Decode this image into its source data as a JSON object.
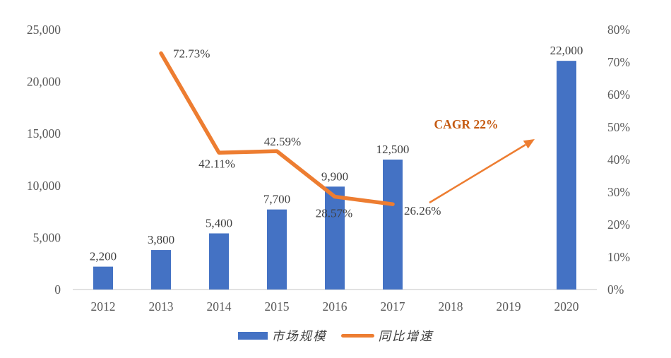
{
  "chart_data": {
    "type": "combo",
    "title": "",
    "categories": [
      "2012",
      "2013",
      "2014",
      "2015",
      "2016",
      "2017",
      "2018",
      "2019",
      "2020"
    ],
    "series": [
      {
        "name": "市场规模",
        "type": "bar",
        "axis": "left",
        "color": "#4472C4",
        "values": [
          2200,
          3800,
          5400,
          7700,
          9900,
          12500,
          null,
          null,
          22000
        ],
        "data_labels": [
          "2,200",
          "3,800",
          "5,400",
          "7,700",
          "9,900",
          "12,500",
          null,
          null,
          "22,000"
        ]
      },
      {
        "name": "同比增速",
        "type": "line",
        "axis": "right",
        "color": "#ED7D31",
        "values": [
          null,
          72.73,
          42.11,
          42.59,
          28.57,
          26.26,
          null,
          null,
          null
        ],
        "data_labels": [
          null,
          "72.73%",
          "42.11%",
          "42.59%",
          "28.57%",
          "26.26%",
          null,
          null,
          null
        ]
      }
    ],
    "left_axis": {
      "min": 0,
      "max": 25000,
      "step": 5000,
      "ticks": [
        0,
        5000,
        10000,
        15000,
        20000,
        25000
      ],
      "tick_labels": [
        "0",
        "5,000",
        "10,000",
        "15,000",
        "20,000",
        "25,000"
      ]
    },
    "right_axis": {
      "min": 0,
      "max": 80,
      "step": 10,
      "ticks": [
        0,
        10,
        20,
        30,
        40,
        50,
        60,
        70,
        80
      ],
      "tick_labels": [
        "0%",
        "10%",
        "20%",
        "30%",
        "40%",
        "50%",
        "60%",
        "70%",
        "80%"
      ]
    },
    "annotation": {
      "text": "CAGR 22%",
      "color": "#C55A11",
      "arrow_color": "#ED7D31"
    },
    "legend": {
      "position": "bottom",
      "items": [
        {
          "label": "市场规模",
          "marker": "rect",
          "color": "#4472C4"
        },
        {
          "label": "同比增速",
          "marker": "line",
          "color": "#ED7D31"
        }
      ]
    },
    "grid": false
  },
  "styles": {
    "axis_text_color": "#595959",
    "data_label_color": "#404040",
    "axis_line_color": "#D9D9D9",
    "background": "#FFFFFF"
  }
}
